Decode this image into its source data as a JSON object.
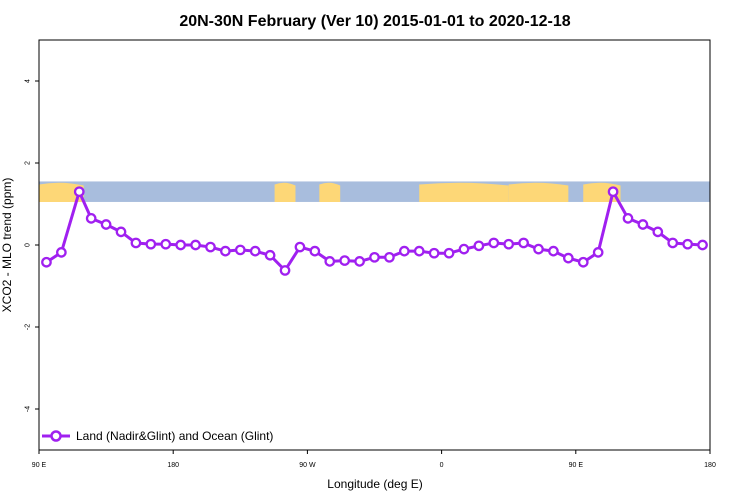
{
  "colors": {
    "series": "#a020f0",
    "ocean": "#a8bddd",
    "land": "#fdd777",
    "axis": "#000000"
  },
  "chart_data": {
    "type": "line",
    "title": "20N-30N February (Ver 10)   2015-01-01 to 2020-12-18",
    "xlabel": "Longitude (deg E)",
    "ylabel": "XCO2 - MLO trend (ppm)",
    "xlim": [
      90,
      540
    ],
    "ylim": [
      -5,
      5
    ],
    "y_ticks": [
      -4,
      -2,
      0,
      2,
      4
    ],
    "x_ticks": [
      {
        "value": 90,
        "label": "90 E"
      },
      {
        "value": 180,
        "label": "180"
      },
      {
        "value": 270,
        "label": "90 W"
      },
      {
        "value": 360,
        "label": "0"
      },
      {
        "value": 450,
        "label": "90 E"
      },
      {
        "value": 540,
        "label": "180"
      }
    ],
    "map_band": {
      "y_range": [
        1.05,
        1.55
      ],
      "land_spans": [
        [
          90,
          120
        ],
        [
          248,
          262
        ],
        [
          278,
          292
        ],
        [
          345,
          405
        ],
        [
          405,
          445
        ],
        [
          455,
          480
        ]
      ]
    },
    "legend": {
      "position": "bottom-left"
    },
    "series": [
      {
        "name": "Land (Nadir&Glint) and Ocean (Glint)",
        "x": [
          95,
          105,
          117,
          125,
          135,
          145,
          155,
          165,
          175,
          185,
          195,
          205,
          215,
          225,
          235,
          245,
          255,
          265,
          275,
          285,
          295,
          305,
          315,
          325,
          335,
          345,
          355,
          365,
          375,
          385,
          395,
          405,
          415,
          425,
          435,
          445,
          455,
          465,
          475,
          485,
          495,
          505,
          515,
          525,
          535
        ],
        "y": [
          -0.42,
          -0.18,
          1.3,
          0.65,
          0.5,
          0.32,
          0.05,
          0.02,
          0.02,
          0.0,
          0.0,
          -0.05,
          -0.15,
          -0.12,
          -0.15,
          -0.25,
          -0.62,
          -0.05,
          -0.15,
          -0.4,
          -0.38,
          -0.4,
          -0.3,
          -0.3,
          -0.15,
          -0.15,
          -0.2,
          -0.2,
          -0.1,
          -0.02,
          0.05,
          0.02,
          0.05,
          -0.1,
          -0.15,
          -0.32,
          -0.42,
          -0.18,
          1.3,
          0.65,
          0.5,
          0.32,
          0.05,
          0.02,
          0.0
        ]
      }
    ]
  }
}
